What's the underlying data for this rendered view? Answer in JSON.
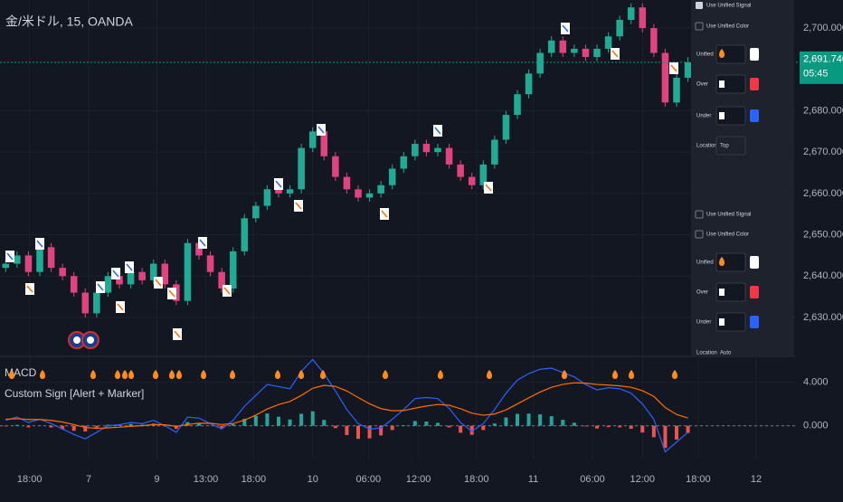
{
  "chart_data": [
    {
      "type": "candlestick",
      "title": "金/米ドル, 15, OANDA",
      "x": [
        0,
        1,
        2,
        3,
        4,
        5,
        6,
        7,
        8,
        9,
        10,
        11,
        12,
        13,
        14,
        15,
        16,
        17,
        18,
        19,
        20,
        21,
        22,
        23,
        24,
        25,
        26,
        27,
        28,
        29,
        30,
        31,
        32,
        33,
        34,
        35,
        36,
        37,
        38,
        39,
        40,
        41,
        42,
        43,
        44,
        45,
        46,
        47,
        48,
        49,
        50,
        51,
        52,
        53,
        54,
        55,
        56,
        57,
        58,
        59,
        60
      ],
      "xlim": [
        -0.5,
        69.5
      ],
      "open": [
        2642,
        2643,
        2645,
        2641,
        2647,
        2642,
        2640,
        2636,
        2631,
        2636,
        2640,
        2638,
        2641,
        2639,
        2643,
        2638,
        2634,
        2648,
        2645,
        2641,
        2637,
        2646,
        2654,
        2657,
        2661,
        2660,
        2661,
        2671,
        2675,
        2669,
        2664,
        2661,
        2659,
        2660,
        2662,
        2666,
        2669,
        2672,
        2670,
        2671,
        2667,
        2664,
        2662,
        2667,
        2673,
        2679,
        2684,
        2689,
        2694,
        2697,
        2694,
        2695,
        2693,
        2695,
        2698,
        2702,
        2705,
        2700,
        2694,
        2682,
        2688
      ],
      "high": [
        2644,
        2646,
        2646,
        2648,
        2648,
        2643,
        2641,
        2637,
        2637,
        2641,
        2641,
        2642,
        2642,
        2644,
        2644,
        2639,
        2649,
        2649,
        2646,
        2642,
        2647,
        2655,
        2658,
        2662,
        2662,
        2662,
        2672,
        2676,
        2676,
        2670,
        2665,
        2662,
        2661,
        2663,
        2667,
        2670,
        2673,
        2673,
        2672,
        2672,
        2668,
        2665,
        2668,
        2674,
        2680,
        2685,
        2690,
        2695,
        2698,
        2698,
        2696,
        2696,
        2696,
        2699,
        2703,
        2706,
        2706,
        2701,
        2695,
        2689,
        2693
      ],
      "low": [
        2641,
        2642,
        2640,
        2640,
        2641,
        2639,
        2635,
        2630,
        2630,
        2635,
        2637,
        2637,
        2638,
        2638,
        2637,
        2633,
        2633,
        2644,
        2640,
        2636,
        2636,
        2645,
        2653,
        2656,
        2659,
        2659,
        2660,
        2670,
        2668,
        2663,
        2660,
        2658,
        2658,
        2659,
        2661,
        2665,
        2668,
        2669,
        2669,
        2666,
        2663,
        2661,
        2661,
        2666,
        2672,
        2678,
        2683,
        2688,
        2693,
        2693,
        2693,
        2692,
        2692,
        2694,
        2697,
        2701,
        2699,
        2693,
        2681,
        2681,
        2687
      ],
      "close": [
        2643,
        2645,
        2641,
        2647,
        2642,
        2640,
        2636,
        2631,
        2636,
        2640,
        2638,
        2641,
        2639,
        2643,
        2638,
        2634,
        2648,
        2645,
        2641,
        2637,
        2646,
        2654,
        2657,
        2661,
        2660,
        2661,
        2671,
        2675,
        2669,
        2664,
        2661,
        2659,
        2660,
        2662,
        2666,
        2669,
        2672,
        2670,
        2671,
        2667,
        2664,
        2662,
        2667,
        2673,
        2679,
        2684,
        2689,
        2694,
        2697,
        2694,
        2695,
        2693,
        2695,
        2698,
        2702,
        2705,
        2700,
        2694,
        2682,
        2688,
        2691.74
      ],
      "up_color": "#22ab94",
      "down_color": "#e0437d",
      "ylim": [
        2620.8,
        2706.8
      ],
      "yticks": [
        {
          "value": 2630,
          "label": "2,630.000"
        },
        {
          "value": 2640,
          "label": "2,640.000"
        },
        {
          "value": 2650,
          "label": "2,650.000"
        },
        {
          "value": 2660,
          "label": "2,660.000"
        },
        {
          "value": 2670,
          "label": "2,670.000"
        },
        {
          "value": 2680,
          "label": "2,680.000"
        },
        {
          "value": 2700,
          "label": "2,700.000"
        }
      ],
      "last_price": 2691.74,
      "last_price_label": "2,691.740",
      "countdown": "05:45",
      "grid": true
    },
    {
      "type": "macd",
      "title": "MACD",
      "subtitle": "Custom Sign [Alert + Marker]",
      "x": [
        0,
        1,
        2,
        3,
        4,
        5,
        6,
        7,
        8,
        9,
        10,
        11,
        12,
        13,
        14,
        15,
        16,
        17,
        18,
        19,
        20,
        21,
        22,
        23,
        24,
        25,
        26,
        27,
        28,
        29,
        30,
        31,
        32,
        33,
        34,
        35,
        36,
        37,
        38,
        39,
        40,
        41,
        42,
        43,
        44,
        45,
        46,
        47,
        48,
        49,
        50,
        51,
        52,
        53,
        54,
        55,
        56,
        57,
        58,
        59,
        60
      ],
      "xlim": [
        -0.5,
        69.5
      ],
      "xticks": [
        {
          "value": 2.1,
          "label": "18:00"
        },
        {
          "value": 7.3,
          "label": "7"
        },
        {
          "value": 13.3,
          "label": "9"
        },
        {
          "value": 17.6,
          "label": "13:00"
        },
        {
          "value": 21.8,
          "label": "18:00"
        },
        {
          "value": 27.0,
          "label": "10"
        },
        {
          "value": 31.9,
          "label": "06:00"
        },
        {
          "value": 36.3,
          "label": "12:00"
        },
        {
          "value": 41.4,
          "label": "18:00"
        },
        {
          "value": 46.4,
          "label": "11"
        },
        {
          "value": 51.6,
          "label": "06:00"
        },
        {
          "value": 56.0,
          "label": "12:00"
        },
        {
          "value": 60.9,
          "label": "18:00"
        },
        {
          "value": 66.0,
          "label": "12"
        }
      ],
      "ylim": [
        -3.1,
        6.3
      ],
      "yticks": [
        {
          "value": 0,
          "label": "0.000"
        },
        {
          "value": 4,
          "label": "4.000"
        }
      ],
      "histogram": {
        "values": [
          -0.05,
          0.08,
          -0.14,
          0.01,
          -0.15,
          -0.32,
          -0.46,
          -0.53,
          -0.18,
          0.1,
          0.12,
          0.17,
          0.1,
          0.2,
          -0.05,
          -0.28,
          0.34,
          0.23,
          -0.02,
          -0.21,
          0.15,
          0.64,
          0.91,
          1.13,
          0.83,
          0.58,
          1.1,
          1.33,
          0.54,
          -0.21,
          -0.85,
          -1.2,
          -1.16,
          -0.89,
          -0.39,
          0.05,
          0.44,
          0.39,
          0.27,
          -0.15,
          -0.64,
          -0.83,
          -0.39,
          0.21,
          0.77,
          1.1,
          1.12,
          1.05,
          0.88,
          0.55,
          0.28,
          -0.06,
          -0.25,
          -0.12,
          -0.14,
          -0.27,
          -0.62,
          -1.05,
          -2.04,
          -1.27,
          -0.66
        ],
        "up_color": "#26a69a",
        "down_color": "#ef5350"
      },
      "series": [
        {
          "color": "#2962ff",
          "values": [
            0.5,
            0.8,
            0.3,
            0.6,
            0.2,
            -0.3,
            -0.8,
            -1.2,
            -0.6,
            0,
            0.1,
            0.3,
            0.2,
            0.5,
            0,
            -0.6,
            0.8,
            0.7,
            0.2,
            -0.3,
            0.5,
            1.8,
            2.8,
            3.8,
            3.6,
            3.4,
            5,
            6.1,
            4.8,
            3.2,
            1.5,
            0.2,
            -0.3,
            -0.2,
            0.6,
            1.5,
            2.5,
            2.6,
            2.5,
            1.6,
            0.3,
            -0.5,
            0.2,
            1.5,
            3,
            4.2,
            4.8,
            5.2,
            5.3,
            4.9,
            4.5,
            3.8,
            3.3,
            3.5,
            3.4,
            3,
            2,
            0.6,
            -2.4,
            -1.5,
            -0.6
          ]
        },
        {
          "color": "#ff6d00",
          "values": [
            0.6,
            0.65,
            0.58,
            0.58,
            0.5,
            0.34,
            0.11,
            -0.15,
            -0.24,
            -0.19,
            -0.13,
            -0.04,
            0.01,
            0.11,
            0.09,
            -0.05,
            0.12,
            0.24,
            0.23,
            0.12,
            0.2,
            0.52,
            0.98,
            1.54,
            1.95,
            2.24,
            2.79,
            3.45,
            3.72,
            3.62,
            3.2,
            2.6,
            2.02,
            1.58,
            1.38,
            1.4,
            1.62,
            1.82,
            1.96,
            1.89,
            1.57,
            1.16,
            0.97,
            1.08,
            1.46,
            2.01,
            2.57,
            3.1,
            3.54,
            3.81,
            3.95,
            3.92,
            3.8,
            3.74,
            3.67,
            3.54,
            3.23,
            2.7,
            1.68,
            1.04,
            0.71
          ]
        }
      ],
      "grid": true
    }
  ],
  "settings_panel": {
    "sections": [
      {
        "signal": "Use Unified Signal",
        "color": "Use Unified Color",
        "rows": [
          "Unified",
          "Over",
          "Under"
        ],
        "location_label": "Location",
        "location": "Top"
      },
      {
        "signal": "Use Unified Signal",
        "color": "Use Unified Color",
        "rows": [
          "Unified",
          "Over",
          "Under"
        ],
        "location_label": "Location",
        "location": "Auto"
      }
    ]
  }
}
